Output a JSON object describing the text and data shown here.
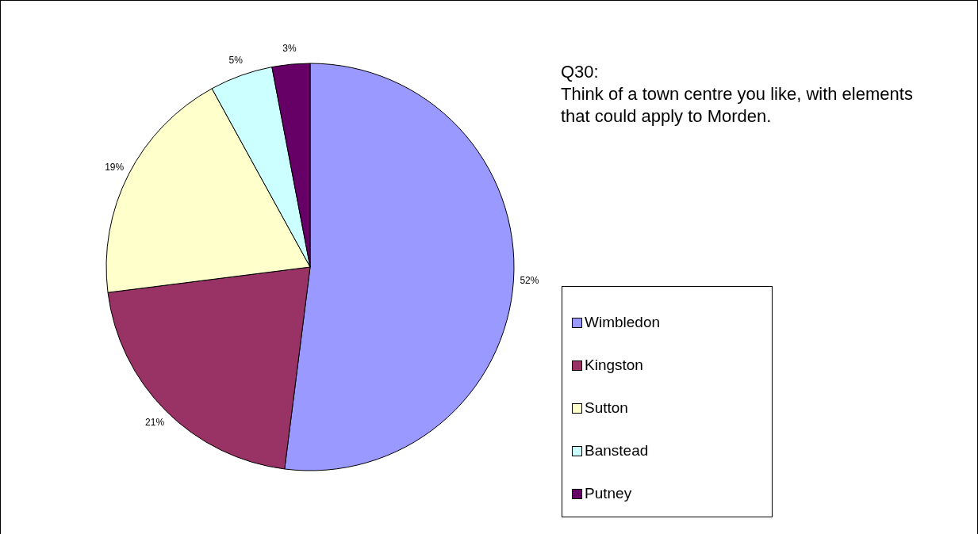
{
  "chart_data": {
    "type": "pie",
    "title": "Q30:\nThink of a town centre you like, with elements that could apply to Morden.",
    "categories": [
      "Wimbledon",
      "Kingston",
      "Sutton",
      "Banstead",
      "Putney"
    ],
    "values": [
      52,
      21,
      19,
      5,
      3
    ],
    "colors": [
      "#9999ff",
      "#993366",
      "#ffffcc",
      "#ccffff",
      "#660066"
    ],
    "value_labels": [
      "52%",
      "21%",
      "19%",
      "5%",
      "3%"
    ],
    "legend": "right"
  }
}
